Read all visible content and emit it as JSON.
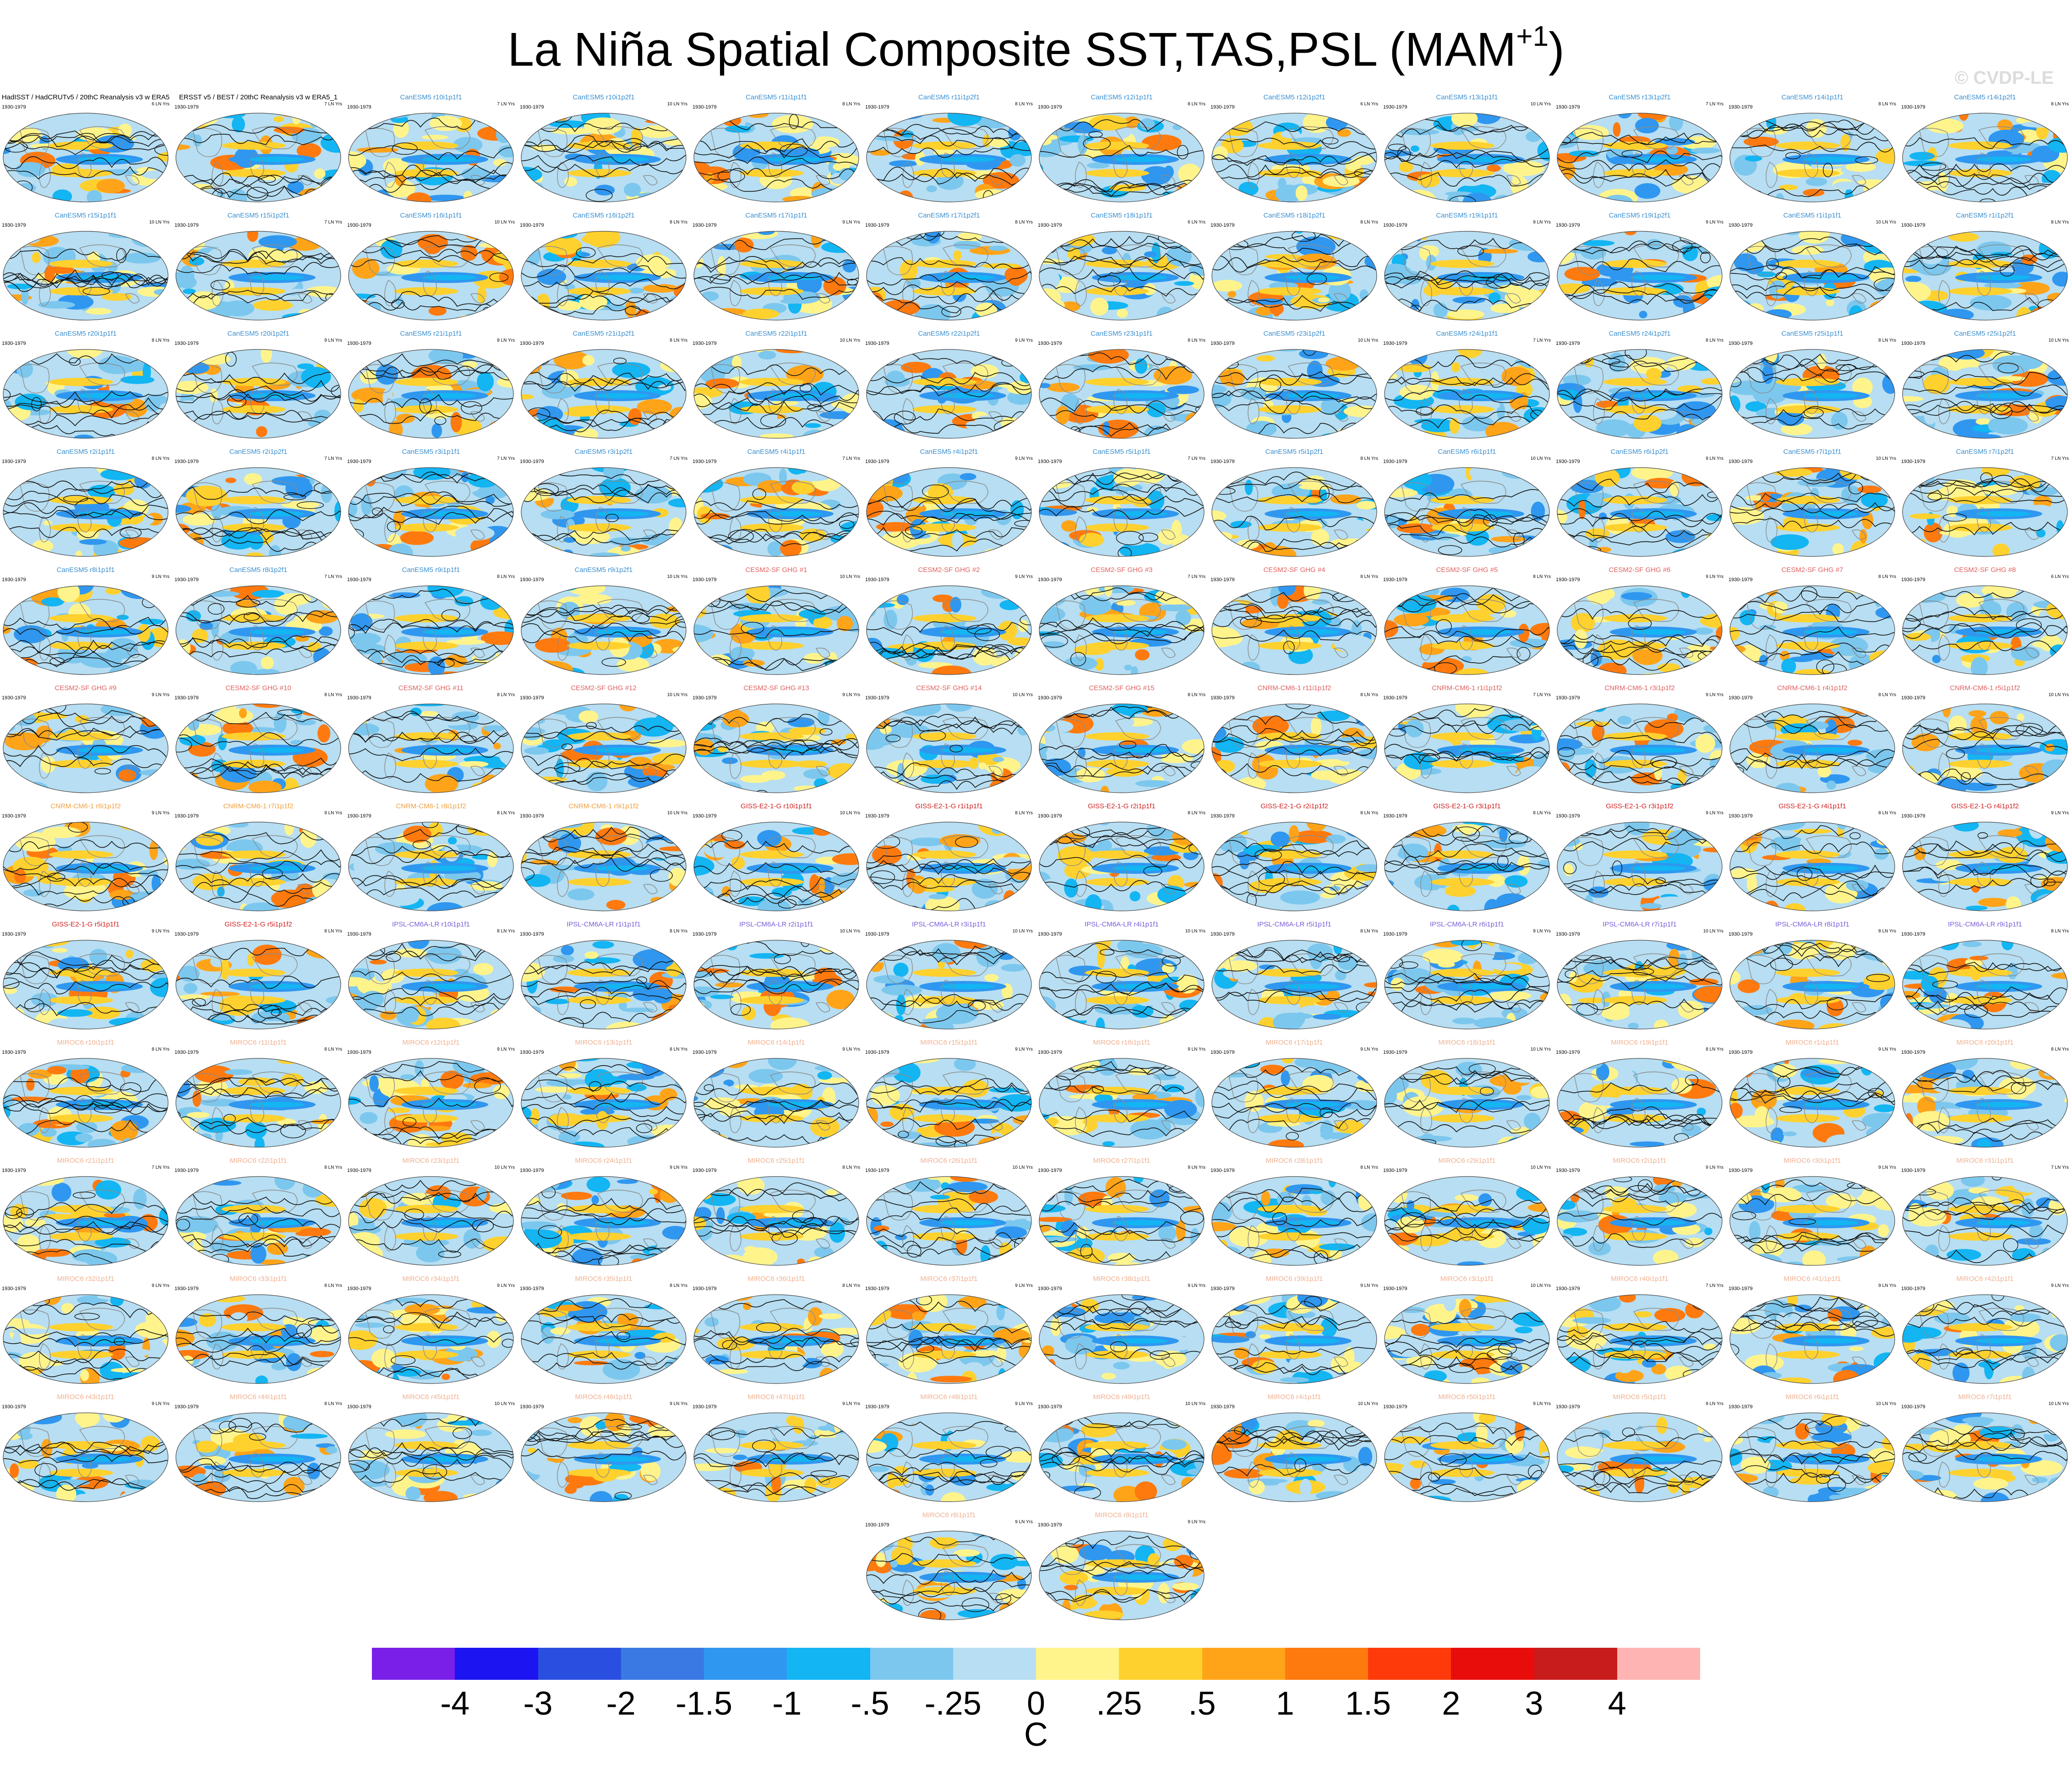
{
  "title": "La Niña Spatial Composite SST,TAS,PSL (MAM",
  "title_sup": "+1",
  "title_close": ")",
  "credit": "© CVDP-LE",
  "chart_data": {
    "type": "heatmap",
    "description_free": true,
    "period_label": "1930-1979",
    "colorbar": {
      "unit": "C",
      "ticks": [
        "-4",
        "-3",
        "-2",
        "-1.5",
        "-1",
        "-.5",
        "-.25",
        "0",
        ".25",
        ".5",
        "1",
        "1.5",
        "2",
        "3",
        "4"
      ],
      "colors": [
        "#7a1fe8",
        "#1d14f2",
        "#2a4fe0",
        "#3a79e3",
        "#2f97f0",
        "#13b5f3",
        "#7cc7ee",
        "#b7def2",
        "#fff48c",
        "#ffd12e",
        "#ffa419",
        "#ff7a0e",
        "#ff3a0a",
        "#e80d0b",
        "#c81b1b",
        "#ffb4b4"
      ]
    },
    "panels": [
      {
        "label": "HadISST / HadCRUTv5 / 20thC Reanalysis v3 w ERA5",
        "stat": "6 LN Yrs",
        "color": "#000000",
        "seed": 1
      },
      {
        "label": "ERSST v5 / BEST / 20thC Reanalysis v3 w ERA5_1",
        "stat": "7 LN Yrs",
        "color": "#000000",
        "seed": 2
      },
      {
        "label": "CanESM5 r10i1p1f1",
        "stat": "7 LN Yrs",
        "color": "#3a8fd0",
        "seed": 3
      },
      {
        "label": "CanESM5 r10i1p2f1",
        "stat": "10 LN Yrs",
        "color": "#3a8fd0",
        "seed": 4
      },
      {
        "label": "CanESM5 r11i1p1f1",
        "stat": "8 LN Yrs",
        "color": "#3a8fd0",
        "seed": 5
      },
      {
        "label": "CanESM5 r11i1p2f1",
        "stat": "8 LN Yrs",
        "color": "#3a8fd0",
        "seed": 6
      },
      {
        "label": "CanESM5 r12i1p1f1",
        "stat": "8 LN Yrs",
        "color": "#3a8fd0",
        "seed": 7
      },
      {
        "label": "CanESM5 r12i1p2f1",
        "stat": "6 LN Yrs",
        "color": "#3a8fd0",
        "seed": 8
      },
      {
        "label": "CanESM5 r13i1p1f1",
        "stat": "10 LN Yrs",
        "color": "#3a8fd0",
        "seed": 9
      },
      {
        "label": "CanESM5 r13i1p2f1",
        "stat": "7 LN Yrs",
        "color": "#3a8fd0",
        "seed": 10
      },
      {
        "label": "CanESM5 r14i1p1f1",
        "stat": "8 LN Yrs",
        "color": "#3a8fd0",
        "seed": 11
      },
      {
        "label": "CanESM5 r14i1p2f1",
        "stat": "8 LN Yrs",
        "color": "#3a8fd0",
        "seed": 12
      },
      {
        "label": "CanESM5 r15i1p1f1",
        "stat": "10 LN Yrs",
        "color": "#3a8fd0",
        "seed": 13
      },
      {
        "label": "CanESM5 r15i1p2f1",
        "stat": "7 LN Yrs",
        "color": "#3a8fd0",
        "seed": 14
      },
      {
        "label": "CanESM5 r16i1p1f1",
        "stat": "10 LN Yrs",
        "color": "#3a8fd0",
        "seed": 15
      },
      {
        "label": "CanESM5 r16i1p2f1",
        "stat": "8 LN Yrs",
        "color": "#3a8fd0",
        "seed": 16
      },
      {
        "label": "CanESM5 r17i1p1f1",
        "stat": "9 LN Yrs",
        "color": "#3a8fd0",
        "seed": 17
      },
      {
        "label": "CanESM5 r17i1p2f1",
        "stat": "8 LN Yrs",
        "color": "#3a8fd0",
        "seed": 18
      },
      {
        "label": "CanESM5 r18i1p1f1",
        "stat": "6 LN Yrs",
        "color": "#3a8fd0",
        "seed": 19
      },
      {
        "label": "CanESM5 r18i1p2f1",
        "stat": "8 LN Yrs",
        "color": "#3a8fd0",
        "seed": 20
      },
      {
        "label": "CanESM5 r19i1p1f1",
        "stat": "9 LN Yrs",
        "color": "#3a8fd0",
        "seed": 21
      },
      {
        "label": "CanESM5 r19i1p2f1",
        "stat": "9 LN Yrs",
        "color": "#3a8fd0",
        "seed": 22
      },
      {
        "label": "CanESM5 r1i1p1f1",
        "stat": "10 LN Yrs",
        "color": "#3a8fd0",
        "seed": 23
      },
      {
        "label": "CanESM5 r1i1p2f1",
        "stat": "8 LN Yrs",
        "color": "#3a8fd0",
        "seed": 24
      },
      {
        "label": "CanESM5 r20i1p1f1",
        "stat": "8 LN Yrs",
        "color": "#3a8fd0",
        "seed": 25
      },
      {
        "label": "CanESM5 r20i1p2f1",
        "stat": "9 LN Yrs",
        "color": "#3a8fd0",
        "seed": 26
      },
      {
        "label": "CanESM5 r21i1p1f1",
        "stat": "8 LN Yrs",
        "color": "#3a8fd0",
        "seed": 27
      },
      {
        "label": "CanESM5 r21i1p2f1",
        "stat": "8 LN Yrs",
        "color": "#3a8fd0",
        "seed": 28
      },
      {
        "label": "CanESM5 r22i1p1f1",
        "stat": "10 LN Yrs",
        "color": "#3a8fd0",
        "seed": 29
      },
      {
        "label": "CanESM5 r22i1p2f1",
        "stat": "9 LN Yrs",
        "color": "#3a8fd0",
        "seed": 30
      },
      {
        "label": "CanESM5 r23i1p1f1",
        "stat": "8 LN Yrs",
        "color": "#3a8fd0",
        "seed": 31
      },
      {
        "label": "CanESM5 r23i1p2f1",
        "stat": "10 LN Yrs",
        "color": "#3a8fd0",
        "seed": 32
      },
      {
        "label": "CanESM5 r24i1p1f1",
        "stat": "7 LN Yrs",
        "color": "#3a8fd0",
        "seed": 33
      },
      {
        "label": "CanESM5 r24i1p2f1",
        "stat": "8 LN Yrs",
        "color": "#3a8fd0",
        "seed": 34
      },
      {
        "label": "CanESM5 r25i1p1f1",
        "stat": "8 LN Yrs",
        "color": "#3a8fd0",
        "seed": 35
      },
      {
        "label": "CanESM5 r25i1p2f1",
        "stat": "10 LN Yrs",
        "color": "#3a8fd0",
        "seed": 36
      },
      {
        "label": "CanESM5 r2i1p1f1",
        "stat": "8 LN Yrs",
        "color": "#3a8fd0",
        "seed": 37
      },
      {
        "label": "CanESM5 r2i1p2f1",
        "stat": "7 LN Yrs",
        "color": "#3a8fd0",
        "seed": 38
      },
      {
        "label": "CanESM5 r3i1p1f1",
        "stat": "7 LN Yrs",
        "color": "#3a8fd0",
        "seed": 39
      },
      {
        "label": "CanESM5 r3i1p2f1",
        "stat": "7 LN Yrs",
        "color": "#3a8fd0",
        "seed": 40
      },
      {
        "label": "CanESM5 r4i1p1f1",
        "stat": "7 LN Yrs",
        "color": "#3a8fd0",
        "seed": 41
      },
      {
        "label": "CanESM5 r4i1p2f1",
        "stat": "9 LN Yrs",
        "color": "#3a8fd0",
        "seed": 42
      },
      {
        "label": "CanESM5 r5i1p1f1",
        "stat": "7 LN Yrs",
        "color": "#3a8fd0",
        "seed": 43
      },
      {
        "label": "CanESM5 r5i1p2f1",
        "stat": "8 LN Yrs",
        "color": "#3a8fd0",
        "seed": 44
      },
      {
        "label": "CanESM5 r6i1p1f1",
        "stat": "10 LN Yrs",
        "color": "#3a8fd0",
        "seed": 45
      },
      {
        "label": "CanESM5 r6i1p2f1",
        "stat": "9 LN Yrs",
        "color": "#3a8fd0",
        "seed": 46
      },
      {
        "label": "CanESM5 r7i1p1f1",
        "stat": "10 LN Yrs",
        "color": "#3a8fd0",
        "seed": 47
      },
      {
        "label": "CanESM5 r7i1p2f1",
        "stat": "7 LN Yrs",
        "color": "#3a8fd0",
        "seed": 48
      },
      {
        "label": "CanESM5 r8i1p1f1",
        "stat": "9 LN Yrs",
        "color": "#3a8fd0",
        "seed": 49
      },
      {
        "label": "CanESM5 r8i1p2f1",
        "stat": "7 LN Yrs",
        "color": "#3a8fd0",
        "seed": 50
      },
      {
        "label": "CanESM5 r9i1p1f1",
        "stat": "8 LN Yrs",
        "color": "#3a8fd0",
        "seed": 51
      },
      {
        "label": "CanESM5 r9i1p2f1",
        "stat": "10 LN Yrs",
        "color": "#3a8fd0",
        "seed": 52
      },
      {
        "label": "CESM2-SF GHG #1",
        "stat": "10 LN Yrs",
        "color": "#e06060",
        "seed": 53
      },
      {
        "label": "CESM2-SF GHG #2",
        "stat": "9 LN Yrs",
        "color": "#e06060",
        "seed": 54
      },
      {
        "label": "CESM2-SF GHG #3",
        "stat": "7 LN Yrs",
        "color": "#e06060",
        "seed": 55
      },
      {
        "label": "CESM2-SF GHG #4",
        "stat": "8 LN Yrs",
        "color": "#e06060",
        "seed": 56
      },
      {
        "label": "CESM2-SF GHG #5",
        "stat": "8 LN Yrs",
        "color": "#e06060",
        "seed": 57
      },
      {
        "label": "CESM2-SF GHG #6",
        "stat": "9 LN Yrs",
        "color": "#e06060",
        "seed": 58
      },
      {
        "label": "CESM2-SF GHG #7",
        "stat": "8 LN Yrs",
        "color": "#e06060",
        "seed": 59
      },
      {
        "label": "CESM2-SF GHG #8",
        "stat": "6 LN Yrs",
        "color": "#e06060",
        "seed": 60
      },
      {
        "label": "CESM2-SF GHG #9",
        "stat": "9 LN Yrs",
        "color": "#e06060",
        "seed": 61
      },
      {
        "label": "CESM2-SF GHG #10",
        "stat": "8 LN Yrs",
        "color": "#e06060",
        "seed": 62
      },
      {
        "label": "CESM2-SF GHG #11",
        "stat": "8 LN Yrs",
        "color": "#e06060",
        "seed": 63
      },
      {
        "label": "CESM2-SF GHG #12",
        "stat": "10 LN Yrs",
        "color": "#e06060",
        "seed": 64
      },
      {
        "label": "CESM2-SF GHG #13",
        "stat": "9 LN Yrs",
        "color": "#e06060",
        "seed": 65
      },
      {
        "label": "CESM2-SF GHG #14",
        "stat": "10 LN Yrs",
        "color": "#e06060",
        "seed": 66
      },
      {
        "label": "CESM2-SF GHG #15",
        "stat": "8 LN Yrs",
        "color": "#e06060",
        "seed": 67
      },
      {
        "label": "CNRM-CM6-1 r11i1p1f2",
        "stat": "8 LN Yrs",
        "color": "#e06060",
        "seed": 68
      },
      {
        "label": "CNRM-CM6-1 r1i1p1f2",
        "stat": "7 LN Yrs",
        "color": "#e06060",
        "seed": 69
      },
      {
        "label": "CNRM-CM6-1 r3i1p1f2",
        "stat": "9 LN Yrs",
        "color": "#e06060",
        "seed": 70
      },
      {
        "label": "CNRM-CM6-1 r4i1p1f2",
        "stat": "8 LN Yrs",
        "color": "#e06060",
        "seed": 71
      },
      {
        "label": "CNRM-CM6-1 r5i1p1f2",
        "stat": "10 LN Yrs",
        "color": "#e06060",
        "seed": 72
      },
      {
        "label": "CNRM-CM6-1 r6i1p1f2",
        "stat": "9 LN Yrs",
        "color": "#f0a040",
        "seed": 73
      },
      {
        "label": "CNRM-CM6-1 r7i1p1f2",
        "stat": "9 LN Yrs",
        "color": "#f0a040",
        "seed": 74
      },
      {
        "label": "CNRM-CM6-1 r8i1p1f2",
        "stat": "8 LN Yrs",
        "color": "#f0a040",
        "seed": 75
      },
      {
        "label": "CNRM-CM6-1 r9i1p1f2",
        "stat": "10 LN Yrs",
        "color": "#f0a040",
        "seed": 76
      },
      {
        "label": "GISS-E2-1-G r10i1p1f1",
        "stat": "10 LN Yrs",
        "color": "#d02020",
        "seed": 77
      },
      {
        "label": "GISS-E2-1-G r1i1p1f1",
        "stat": "8 LN Yrs",
        "color": "#d02020",
        "seed": 78
      },
      {
        "label": "GISS-E2-1-G r2i1p1f1",
        "stat": "8 LN Yrs",
        "color": "#d02020",
        "seed": 79
      },
      {
        "label": "GISS-E2-1-G r2i1p1f2",
        "stat": "8 LN Yrs",
        "color": "#d02020",
        "seed": 80
      },
      {
        "label": "GISS-E2-1-G r3i1p1f1",
        "stat": "8 LN Yrs",
        "color": "#d02020",
        "seed": 81
      },
      {
        "label": "GISS-E2-1-G r3i1p1f2",
        "stat": "9 LN Yrs",
        "color": "#d02020",
        "seed": 82
      },
      {
        "label": "GISS-E2-1-G r4i1p1f1",
        "stat": "8 LN Yrs",
        "color": "#d02020",
        "seed": 83
      },
      {
        "label": "GISS-E2-1-G r4i1p1f2",
        "stat": "9 LN Yrs",
        "color": "#d02020",
        "seed": 84
      },
      {
        "label": "GISS-E2-1-G r5i1p1f1",
        "stat": "9 LN Yrs",
        "color": "#d02020",
        "seed": 85
      },
      {
        "label": "GISS-E2-1-G r5i1p1f2",
        "stat": "8 LN Yrs",
        "color": "#d02020",
        "seed": 86
      },
      {
        "label": "IPSL-CM6A-LR r10i1p1f1",
        "stat": "8 LN Yrs",
        "color": "#7a5cd8",
        "seed": 87
      },
      {
        "label": "IPSL-CM6A-LR r1i1p1f1",
        "stat": "8 LN Yrs",
        "color": "#7a5cd8",
        "seed": 88
      },
      {
        "label": "IPSL-CM6A-LR r2i1p1f1",
        "stat": "10 LN Yrs",
        "color": "#7a5cd8",
        "seed": 89
      },
      {
        "label": "IPSL-CM6A-LR r3i1p1f1",
        "stat": "10 LN Yrs",
        "color": "#7a5cd8",
        "seed": 90
      },
      {
        "label": "IPSL-CM6A-LR r4i1p1f1",
        "stat": "10 LN Yrs",
        "color": "#7a5cd8",
        "seed": 91
      },
      {
        "label": "IPSL-CM6A-LR r5i1p1f1",
        "stat": "8 LN Yrs",
        "color": "#7a5cd8",
        "seed": 92
      },
      {
        "label": "IPSL-CM6A-LR r6i1p1f1",
        "stat": "9 LN Yrs",
        "color": "#7a5cd8",
        "seed": 93
      },
      {
        "label": "IPSL-CM6A-LR r7i1p1f1",
        "stat": "10 LN Yrs",
        "color": "#7a5cd8",
        "seed": 94
      },
      {
        "label": "IPSL-CM6A-LR r8i1p1f1",
        "stat": "8 LN Yrs",
        "color": "#7a5cd8",
        "seed": 95
      },
      {
        "label": "IPSL-CM6A-LR r9i1p1f1",
        "stat": "8 LN Yrs",
        "color": "#7a5cd8",
        "seed": 96
      },
      {
        "label": "MIROC6 r10i1p1f1",
        "stat": "8 LN Yrs",
        "color": "#f0b090",
        "seed": 97
      },
      {
        "label": "MIROC6 r11i1p1f1",
        "stat": "8 LN Yrs",
        "color": "#f0b090",
        "seed": 98
      },
      {
        "label": "MIROC6 r12i1p1f1",
        "stat": "9 LN Yrs",
        "color": "#f0b090",
        "seed": 99
      },
      {
        "label": "MIROC6 r13i1p1f1",
        "stat": "8 LN Yrs",
        "color": "#f0b090",
        "seed": 100
      },
      {
        "label": "MIROC6 r14i1p1f1",
        "stat": "9 LN Yrs",
        "color": "#f0b090",
        "seed": 101
      },
      {
        "label": "MIROC6 r15i1p1f1",
        "stat": "9 LN Yrs",
        "color": "#f0b090",
        "seed": 102
      },
      {
        "label": "MIROC6 r16i1p1f1",
        "stat": "9 LN Yrs",
        "color": "#f0b090",
        "seed": 103
      },
      {
        "label": "MIROC6 r17i1p1f1",
        "stat": "9 LN Yrs",
        "color": "#f0b090",
        "seed": 104
      },
      {
        "label": "MIROC6 r18i1p1f1",
        "stat": "10 LN Yrs",
        "color": "#f0b090",
        "seed": 105
      },
      {
        "label": "MIROC6 r19i1p1f1",
        "stat": "8 LN Yrs",
        "color": "#f0b090",
        "seed": 106
      },
      {
        "label": "MIROC6 r1i1p1f1",
        "stat": "9 LN Yrs",
        "color": "#f0b090",
        "seed": 107
      },
      {
        "label": "MIROC6 r20i1p1f1",
        "stat": "8 LN Yrs",
        "color": "#f0b090",
        "seed": 108
      },
      {
        "label": "MIROC6 r21i1p1f1",
        "stat": "7 LN Yrs",
        "color": "#f0b090",
        "seed": 109
      },
      {
        "label": "MIROC6 r22i1p1f1",
        "stat": "8 LN Yrs",
        "color": "#f0b090",
        "seed": 110
      },
      {
        "label": "MIROC6 r23i1p1f1",
        "stat": "10 LN Yrs",
        "color": "#f0b090",
        "seed": 111
      },
      {
        "label": "MIROC6 r24i1p1f1",
        "stat": "9 LN Yrs",
        "color": "#f0b090",
        "seed": 112
      },
      {
        "label": "MIROC6 r25i1p1f1",
        "stat": "8 LN Yrs",
        "color": "#f0b090",
        "seed": 113
      },
      {
        "label": "MIROC6 r26i1p1f1",
        "stat": "10 LN Yrs",
        "color": "#f0b090",
        "seed": 114
      },
      {
        "label": "MIROC6 r27i1p1f1",
        "stat": "9 LN Yrs",
        "color": "#f0b090",
        "seed": 115
      },
      {
        "label": "MIROC6 r28i1p1f1",
        "stat": "8 LN Yrs",
        "color": "#f0b090",
        "seed": 116
      },
      {
        "label": "MIROC6 r29i1p1f1",
        "stat": "10 LN Yrs",
        "color": "#f0b090",
        "seed": 117
      },
      {
        "label": "MIROC6 r2i1p1f1",
        "stat": "9 LN Yrs",
        "color": "#f0b090",
        "seed": 118
      },
      {
        "label": "MIROC6 r30i1p1f1",
        "stat": "9 LN Yrs",
        "color": "#f0b090",
        "seed": 119
      },
      {
        "label": "MIROC6 r31i1p1f1",
        "stat": "7 LN Yrs",
        "color": "#f0b090",
        "seed": 120
      },
      {
        "label": "MIROC6 r32i1p1f1",
        "stat": "9 LN Yrs",
        "color": "#f0b090",
        "seed": 121
      },
      {
        "label": "MIROC6 r33i1p1f1",
        "stat": "8 LN Yrs",
        "color": "#f0b090",
        "seed": 122
      },
      {
        "label": "MIROC6 r34i1p1f1",
        "stat": "9 LN Yrs",
        "color": "#f0b090",
        "seed": 123
      },
      {
        "label": "MIROC6 r35i1p1f1",
        "stat": "8 LN Yrs",
        "color": "#f0b090",
        "seed": 124
      },
      {
        "label": "MIROC6 r36i1p1f1",
        "stat": "8 LN Yrs",
        "color": "#f0b090",
        "seed": 125
      },
      {
        "label": "MIROC6 r37i1p1f1",
        "stat": "9 LN Yrs",
        "color": "#f0b090",
        "seed": 126
      },
      {
        "label": "MIROC6 r38i1p1f1",
        "stat": "9 LN Yrs",
        "color": "#f0b090",
        "seed": 127
      },
      {
        "label": "MIROC6 r39i1p1f1",
        "stat": "9 LN Yrs",
        "color": "#f0b090",
        "seed": 128
      },
      {
        "label": "MIROC6 r3i1p1f1",
        "stat": "10 LN Yrs",
        "color": "#f0b090",
        "seed": 129
      },
      {
        "label": "MIROC6 r40i1p1f1",
        "stat": "7 LN Yrs",
        "color": "#f0b090",
        "seed": 130
      },
      {
        "label": "MIROC6 r41i1p1f1",
        "stat": "9 LN Yrs",
        "color": "#f0b090",
        "seed": 131
      },
      {
        "label": "MIROC6 r42i1p1f1",
        "stat": "9 LN Yrs",
        "color": "#f0b090",
        "seed": 132
      },
      {
        "label": "MIROC6 r43i1p1f1",
        "stat": "9 LN Yrs",
        "color": "#f0b090",
        "seed": 133
      },
      {
        "label": "MIROC6 r44i1p1f1",
        "stat": "8 LN Yrs",
        "color": "#f0b090",
        "seed": 134
      },
      {
        "label": "MIROC6 r45i1p1f1",
        "stat": "10 LN Yrs",
        "color": "#f0b090",
        "seed": 135
      },
      {
        "label": "MIROC6 r46i1p1f1",
        "stat": "9 LN Yrs",
        "color": "#f0b090",
        "seed": 136
      },
      {
        "label": "MIROC6 r47i1p1f1",
        "stat": "9 LN Yrs",
        "color": "#f0b090",
        "seed": 137
      },
      {
        "label": "MIROC6 r48i1p1f1",
        "stat": "9 LN Yrs",
        "color": "#f0b090",
        "seed": 138
      },
      {
        "label": "MIROC6 r49i1p1f1",
        "stat": "10 LN Yrs",
        "color": "#f0b090",
        "seed": 139
      },
      {
        "label": "MIROC6 r4i1p1f1",
        "stat": "10 LN Yrs",
        "color": "#f0b090",
        "seed": 140
      },
      {
        "label": "MIROC6 r50i1p1f1",
        "stat": "9 LN Yrs",
        "color": "#f0b090",
        "seed": 141
      },
      {
        "label": "MIROC6 r5i1p1f1",
        "stat": "9 LN Yrs",
        "color": "#f0b090",
        "seed": 142
      },
      {
        "label": "MIROC6 r6i1p1f1",
        "stat": "10 LN Yrs",
        "color": "#f0b090",
        "seed": 143
      },
      {
        "label": "MIROC6 r7i1p1f1",
        "stat": "10 LN Yrs",
        "color": "#f0b090",
        "seed": 144
      },
      {
        "label": "MIROC6 r8i1p1f1",
        "stat": "9 LN Yrs",
        "color": "#f0b090",
        "seed": 145
      },
      {
        "label": "MIROC6 r9i1p1f1",
        "stat": "9 LN Yrs",
        "color": "#f0b090",
        "seed": 146
      }
    ]
  }
}
